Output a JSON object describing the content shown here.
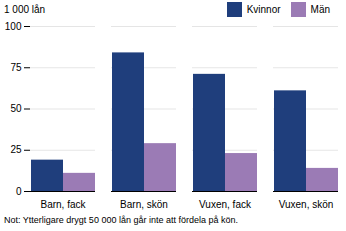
{
  "chart_data": {
    "type": "bar",
    "categories": [
      "Barn, fack",
      "Barn, skön",
      "Vuxen, fack",
      "Vuxen, skön"
    ],
    "series": [
      {
        "name": "Kvinnor",
        "color": "#1F3E7C",
        "values": [
          19,
          84,
          71,
          61
        ]
      },
      {
        "name": "Män",
        "color": "#9B7BB5",
        "values": [
          11,
          29,
          23,
          14
        ]
      }
    ],
    "ylabel": "1 000 lån",
    "note": "Not: Ytterligare drygt 50 000 lån går inte att fördela på kön.",
    "ylim": [
      0,
      100
    ],
    "yticks": [
      0,
      25,
      50,
      75,
      100
    ],
    "grid": true,
    "legend": "upper right"
  }
}
